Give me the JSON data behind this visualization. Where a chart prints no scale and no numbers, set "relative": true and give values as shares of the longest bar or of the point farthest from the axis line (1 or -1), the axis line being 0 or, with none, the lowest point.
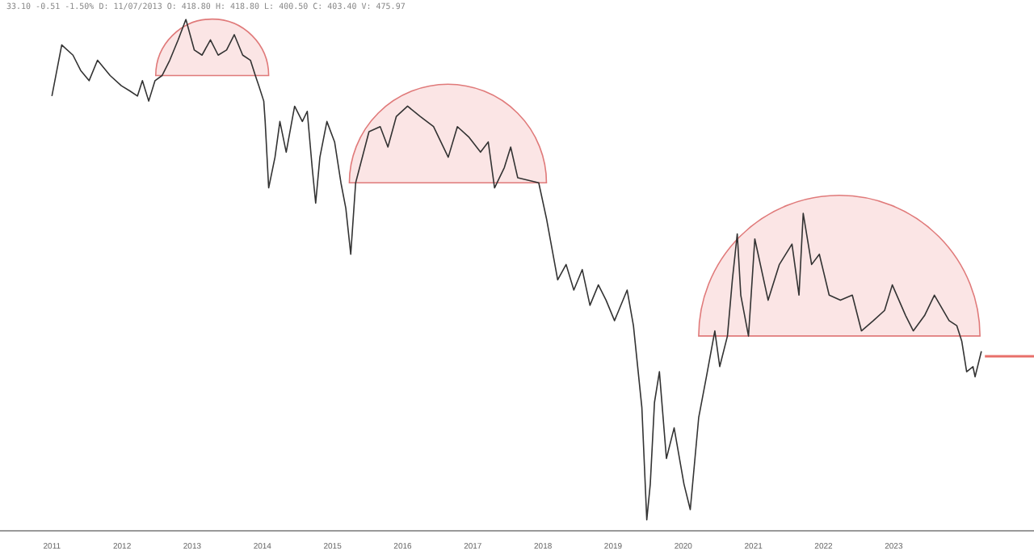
{
  "chart_data": {
    "type": "line",
    "relative": true,
    "subtitle": "33.10 -0.51 -1.50% D: 11/07/2013 O: 418.80 H: 418.80 L: 400.50 C: 403.40 V: 475.97",
    "x": [
      2011.0,
      2011.14,
      2011.3,
      2011.41,
      2011.53,
      2011.65,
      2011.83,
      2011.99,
      2012.11,
      2012.22,
      2012.29,
      2012.38,
      2012.47,
      2012.57,
      2012.68,
      2012.8,
      2012.91,
      2013.03,
      2013.14,
      2013.26,
      2013.37,
      2013.49,
      2013.6,
      2013.72,
      2013.83,
      2013.9,
      2013.95,
      2014.02,
      2014.04,
      2014.09,
      2014.18,
      2014.25,
      2014.34,
      2014.46,
      2014.57,
      2014.64,
      2014.71,
      2014.76,
      2014.82,
      2014.92,
      2015.03,
      2015.12,
      2015.19,
      2015.26,
      2015.33,
      2015.52,
      2015.68,
      2015.79,
      2015.91,
      2016.07,
      2016.25,
      2016.44,
      2016.65,
      2016.78,
      2016.94,
      2017.11,
      2017.22,
      2017.31,
      2017.45,
      2017.54,
      2017.64,
      2017.94,
      2018.05,
      2018.21,
      2018.33,
      2018.44,
      2018.56,
      2018.67,
      2018.79,
      2018.9,
      2019.02,
      2019.2,
      2019.29,
      2019.41,
      2019.48,
      2019.53,
      2019.59,
      2019.66,
      2019.76,
      2019.87,
      2020.01,
      2020.1,
      2020.22,
      2020.33,
      2020.45,
      2020.52,
      2020.63,
      2020.7,
      2020.77,
      2020.82,
      2020.93,
      2021.02,
      2021.21,
      2021.37,
      2021.55,
      2021.65,
      2021.71,
      2021.83,
      2021.94,
      2022.08,
      2022.24,
      2022.41,
      2022.54,
      2022.71,
      2022.87,
      2022.98,
      2023.17,
      2023.28,
      2023.44,
      2023.58,
      2023.79,
      2023.9,
      2023.97,
      2024.04,
      2024.13,
      2024.16,
      2024.25
    ],
    "series": [
      {
        "color": "#333333",
        "values": [
          0.85,
          0.95,
          0.93,
          0.9,
          0.88,
          0.92,
          0.89,
          0.87,
          0.86,
          0.85,
          0.88,
          0.84,
          0.88,
          0.89,
          0.92,
          0.96,
          1.0,
          0.94,
          0.93,
          0.96,
          0.93,
          0.94,
          0.97,
          0.93,
          0.92,
          0.89,
          0.87,
          0.84,
          0.8,
          0.67,
          0.73,
          0.8,
          0.74,
          0.83,
          0.8,
          0.82,
          0.71,
          0.64,
          0.73,
          0.8,
          0.76,
          0.68,
          0.63,
          0.54,
          0.68,
          0.78,
          0.79,
          0.75,
          0.81,
          0.83,
          0.81,
          0.79,
          0.73,
          0.79,
          0.77,
          0.74,
          0.76,
          0.67,
          0.71,
          0.75,
          0.69,
          0.68,
          0.61,
          0.49,
          0.52,
          0.47,
          0.51,
          0.44,
          0.48,
          0.45,
          0.41,
          0.47,
          0.4,
          0.24,
          0.02,
          0.09,
          0.25,
          0.31,
          0.14,
          0.2,
          0.09,
          0.04,
          0.22,
          0.3,
          0.39,
          0.32,
          0.38,
          0.49,
          0.58,
          0.46,
          0.38,
          0.57,
          0.45,
          0.52,
          0.56,
          0.46,
          0.62,
          0.52,
          0.54,
          0.46,
          0.45,
          0.46,
          0.39,
          0.41,
          0.43,
          0.48,
          0.42,
          0.39,
          0.42,
          0.46,
          0.41,
          0.4,
          0.37,
          0.31,
          0.32,
          0.3,
          0.35
        ]
      },
      {
        "type": "line",
        "color": "#e8706a",
        "x": [
          2024.3,
          2025.0
        ],
        "values": [
          0.34,
          0.34
        ]
      }
    ],
    "xlim": [
      2010.26,
      2025.0
    ],
    "xticks": [
      2011,
      2012,
      2013,
      2014,
      2015,
      2016,
      2017,
      2018,
      2019,
      2020,
      2021,
      2022,
      2023
    ],
    "grid": false,
    "marker": "none",
    "line_style": "solid"
  }
}
